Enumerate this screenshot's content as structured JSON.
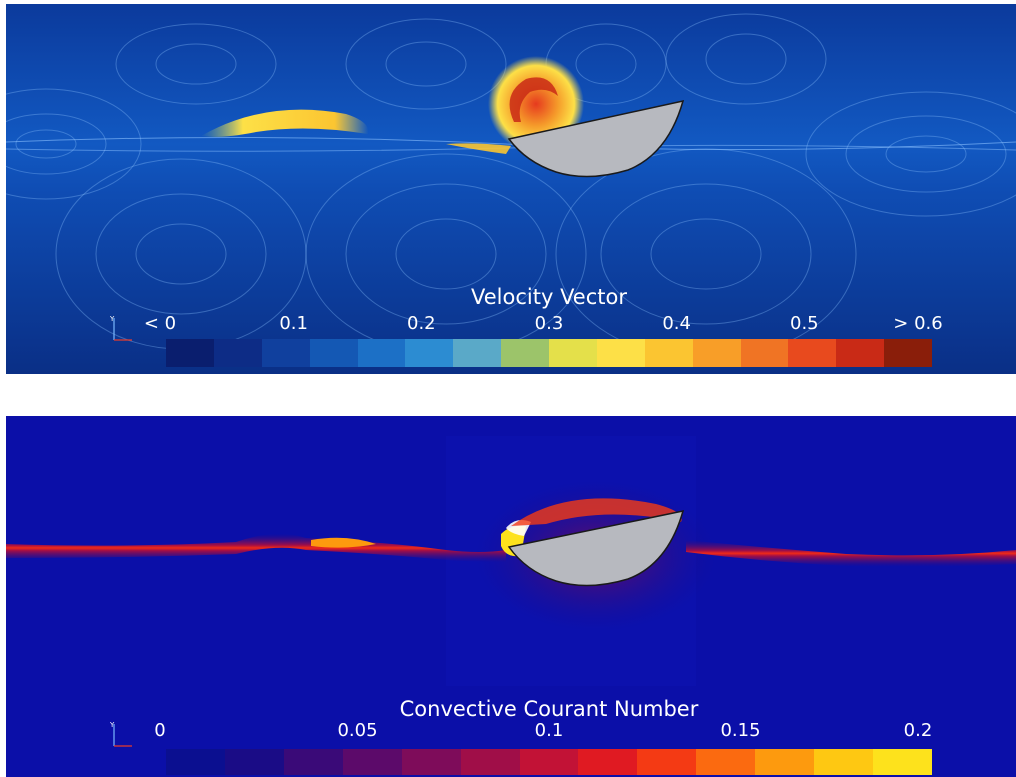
{
  "velocity_panel": {
    "colorbar": {
      "title": "Velocity Vector",
      "ticks": [
        "< 0",
        "0.1",
        "0.2",
        "0.3",
        "0.4",
        "0.5",
        "> 0.6"
      ],
      "range": [
        0,
        0.6
      ],
      "colors": [
        "#0a1e6e",
        "#0d2c86",
        "#10409e",
        "#1458b4",
        "#1c70c6",
        "#2c8cd2",
        "#5aa9c8",
        "#9cc46a",
        "#e4e04a",
        "#fde047",
        "#fbc531",
        "#f89e28",
        "#f07424",
        "#e84a1e",
        "#c92a16",
        "#8a1e0a"
      ]
    },
    "field_colors": {
      "background": "#0b3a9c",
      "streamline": "#7fb8ff",
      "body": "#b7b9bf"
    }
  },
  "courant_panel": {
    "colorbar": {
      "title": "Convective Courant Number",
      "ticks": [
        "0",
        "0.05",
        "0.1",
        "0.15",
        "0.2"
      ],
      "range": [
        0,
        0.2
      ],
      "colors": [
        "#0b0f90",
        "#1a0c86",
        "#3a0a78",
        "#5c0a6a",
        "#7e0c5a",
        "#a00e48",
        "#c21236",
        "#e01a22",
        "#f43a14",
        "#fb6a10",
        "#fd9a0e",
        "#fec812",
        "#fde21c"
      ]
    },
    "field_colors": {
      "background": "#0b0fa8",
      "band": "#e0141e",
      "body": "#b7b9bf"
    }
  }
}
